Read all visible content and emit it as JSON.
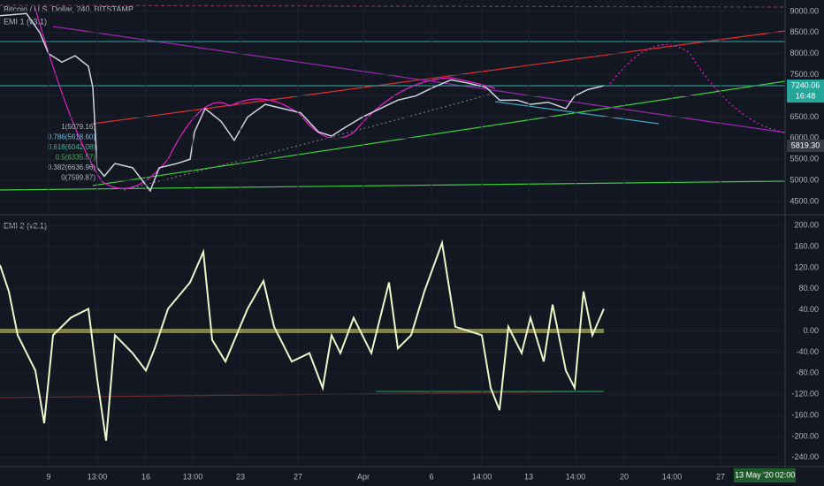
{
  "chart_data": [
    {
      "type": "line",
      "title": "Bitcoin / U.S. Dollar, 240, BITSTAMP",
      "subtitle": "EMI 1 (v3.1)",
      "x": [
        0,
        7.5,
        11.25,
        13.75,
        17.5,
        21.25,
        25,
        26.25,
        27.5,
        29.5,
        32.5,
        37.5,
        42.5,
        45,
        50,
        53.75,
        55,
        58,
        62.5,
        66.25,
        70,
        75,
        80,
        85,
        90,
        93.75,
        97.5,
        102.5,
        107.5,
        112.5,
        117.5,
        122.5,
        127.5,
        132.5,
        137.5,
        141.25,
        146.25,
        150,
        155,
        160,
        162.5,
        166.25,
        170.75
      ],
      "series": [
        {
          "name": "BTCUSD",
          "color": "#d1d4dc",
          "values": [
            8900,
            8950,
            8500,
            8000,
            7800,
            7950,
            7700,
            7200,
            5300,
            5100,
            5400,
            5300,
            4750,
            5300,
            5400,
            5500,
            6150,
            6700,
            6400,
            5950,
            6500,
            6800,
            6700,
            6600,
            6150,
            6050,
            6250,
            6500,
            6700,
            6900,
            7000,
            7200,
            7380,
            7300,
            7200,
            6900,
            6900,
            6800,
            6850,
            6700,
            7000,
            7150,
            7240
          ]
        }
      ],
      "xlim": [
        0,
        222
      ],
      "ylim": [
        4230,
        9270
      ],
      "yticks": [
        {
          "value": 9000,
          "label": "9000.00"
        },
        {
          "value": 8500,
          "label": "8500.00"
        },
        {
          "value": 8000,
          "label": "8000.00"
        },
        {
          "value": 7500,
          "label": "7500.00"
        },
        {
          "value": 7000,
          "label": "7000.00"
        },
        {
          "value": 6500,
          "label": "6500.00"
        },
        {
          "value": 6000,
          "label": "6000.00"
        },
        {
          "value": 5500,
          "label": "5500.00"
        },
        {
          "value": 5000,
          "label": "5000.00"
        },
        {
          "value": 4500,
          "label": "4500.00"
        }
      ],
      "current_price": 7240.06,
      "countdown": "16:48",
      "marker_price": {
        "value": 5819.3,
        "label": "5819.30"
      },
      "fib_labels": [
        "1(5079.16)",
        "0.786(5618.60)",
        "0.618(6042.08)",
        "0.5(6335.57)",
        "0.382(6636.96)",
        "0(7599.87)"
      ],
      "fib_colors": [
        "#b2b5be",
        "#7fb8d8",
        "#4caf8f",
        "#4caf50",
        "#b2b5be",
        "#b2b5be"
      ]
    },
    {
      "type": "line",
      "title": "EMI 2 (v2.1)",
      "x": [
        0,
        2.5,
        5,
        10,
        12.5,
        15,
        20,
        25,
        27.5,
        30,
        32.5,
        37.5,
        41.25,
        43.75,
        47.5,
        53.75,
        57.5,
        60,
        63.75,
        70,
        74.5,
        77.5,
        82.5,
        87.5,
        91.25,
        93.75,
        96.25,
        100,
        105,
        110,
        112.5,
        116.25,
        120,
        125,
        128.75,
        132.5,
        136.25,
        138.75,
        141.25,
        143.75,
        147.5,
        150,
        153.75,
        156.25,
        160,
        162.5,
        165,
        167.5,
        170.75
      ],
      "series": [
        {
          "name": "EMI",
          "color": "#eaf7c8",
          "values": [
            125,
            75,
            -8,
            -75,
            -175,
            -8,
            25,
            42,
            -92,
            -208,
            -8,
            -42,
            -75,
            -33,
            42,
            92,
            150,
            -17,
            -58,
            42,
            95,
            8,
            -58,
            -42,
            -108,
            -8,
            -42,
            25,
            -42,
            92,
            -33,
            -8,
            75,
            167,
            8,
            0,
            -8,
            -108,
            -150,
            8,
            -42,
            25,
            -58,
            50,
            -75,
            -108,
            75,
            -8,
            42
          ]
        }
      ],
      "xlim": [
        0,
        222
      ],
      "ylim": [
        -257,
        217
      ],
      "yticks": [
        {
          "value": 200,
          "label": "200.00"
        },
        {
          "value": 160,
          "label": "160.00"
        },
        {
          "value": 120,
          "label": "120.00"
        },
        {
          "value": 80,
          "label": "80.00"
        },
        {
          "value": 40,
          "label": "40.00"
        },
        {
          "value": 0,
          "label": "0.00"
        },
        {
          "value": -40,
          "label": "-40.00"
        },
        {
          "value": -80,
          "label": "-80.00"
        },
        {
          "value": -120,
          "label": "-120.00"
        },
        {
          "value": -160,
          "label": "-160.00"
        },
        {
          "value": -200,
          "label": "-200.00"
        },
        {
          "value": -240,
          "label": "-240.00"
        }
      ],
      "xticks": [
        {
          "value": 13.75,
          "label": "9"
        },
        {
          "value": 27.5,
          "label": "13:00"
        },
        {
          "value": 41.25,
          "label": "16"
        },
        {
          "value": 54.5,
          "label": "13:00"
        },
        {
          "value": 68,
          "label": "23"
        },
        {
          "value": 84.25,
          "label": "27"
        },
        {
          "value": 102.75,
          "label": "Apr"
        },
        {
          "value": 122,
          "label": "6"
        },
        {
          "value": 136.25,
          "label": "14:00"
        },
        {
          "value": 149.5,
          "label": "13"
        },
        {
          "value": 162.75,
          "label": "14:00"
        },
        {
          "value": 176.5,
          "label": "20"
        },
        {
          "value": 190,
          "label": "14:00"
        },
        {
          "value": 203.75,
          "label": "27"
        }
      ],
      "crosshair_date": "13 May '20",
      "crosshair_time": "02:00"
    }
  ]
}
